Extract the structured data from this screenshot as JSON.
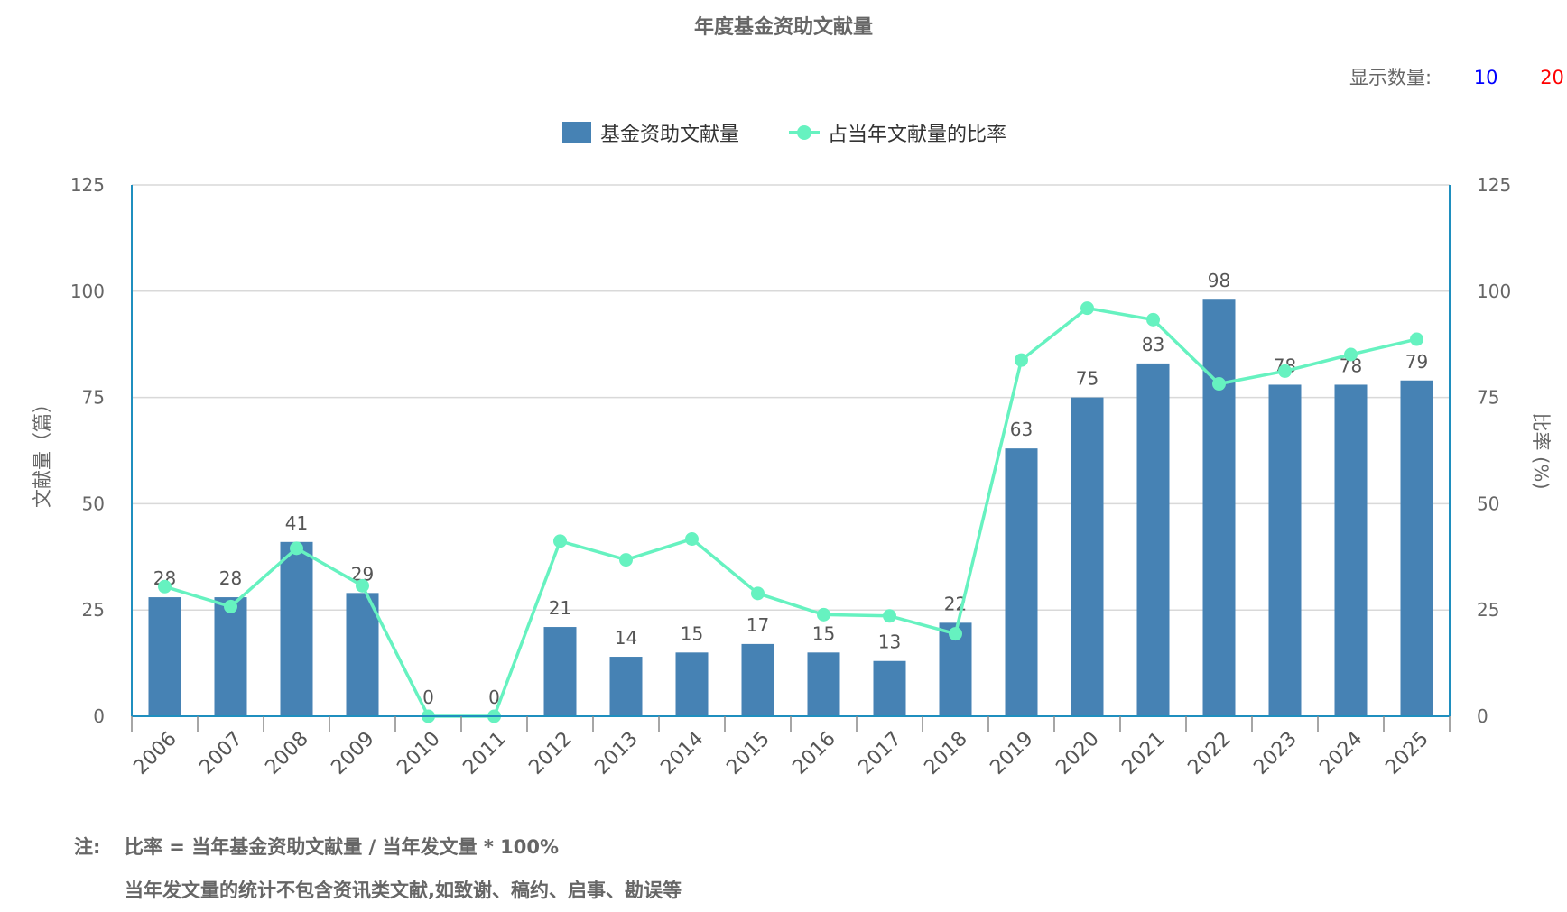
{
  "title": "年度基金资助文献量",
  "display_count": {
    "label": "显示数量:",
    "options": [
      {
        "label": "10",
        "color": "#0000ff"
      },
      {
        "label": "20",
        "color": "#ff0000"
      }
    ]
  },
  "legend": {
    "bar_label": "基金资助文献量",
    "line_label": "占当年文献量的比率"
  },
  "colors": {
    "bar": "#4682b4",
    "line": "#66f2c0",
    "axis": "#1f8fbf",
    "grid": "#d9d9d9"
  },
  "chart_data": {
    "type": "bar",
    "categories": [
      "2006",
      "2007",
      "2008",
      "2009",
      "2010",
      "2011",
      "2012",
      "2013",
      "2014",
      "2015",
      "2016",
      "2017",
      "2018",
      "2019",
      "2020",
      "2021",
      "2022",
      "2023",
      "2024",
      "2025"
    ],
    "series": [
      {
        "name": "基金资助文献量",
        "type": "bar",
        "axis": "left",
        "values": [
          28,
          28,
          41,
          29,
          0,
          0,
          21,
          14,
          15,
          17,
          15,
          13,
          22,
          63,
          75,
          83,
          98,
          78,
          78,
          79
        ]
      },
      {
        "name": "占当年文献量的比率",
        "type": "line",
        "axis": "right",
        "values": [
          30.5,
          25.8,
          39.5,
          30.7,
          0,
          0,
          41.2,
          36.8,
          41.7,
          28.9,
          23.9,
          23.6,
          19.4,
          83.8,
          96.0,
          93.3,
          78.2,
          81.2,
          85.1,
          88.7
        ]
      }
    ],
    "ylabel": "文献量（篇）",
    "y2label": "比率 (%)",
    "ylim": [
      0,
      125
    ],
    "y2lim": [
      0,
      125
    ],
    "yticks": [
      0,
      25,
      50,
      75,
      100,
      125
    ],
    "y2ticks": [
      0,
      25,
      50,
      75,
      100,
      125
    ],
    "grid": true,
    "legend_position": "top-center"
  },
  "notes": {
    "label": "注:",
    "line1": "比率 = 当年基金资助文献量 / 当年发文量 * 100%",
    "line2": "当年发文量的统计不包含资讯类文献,如致谢、稿约、启事、勘误等"
  }
}
